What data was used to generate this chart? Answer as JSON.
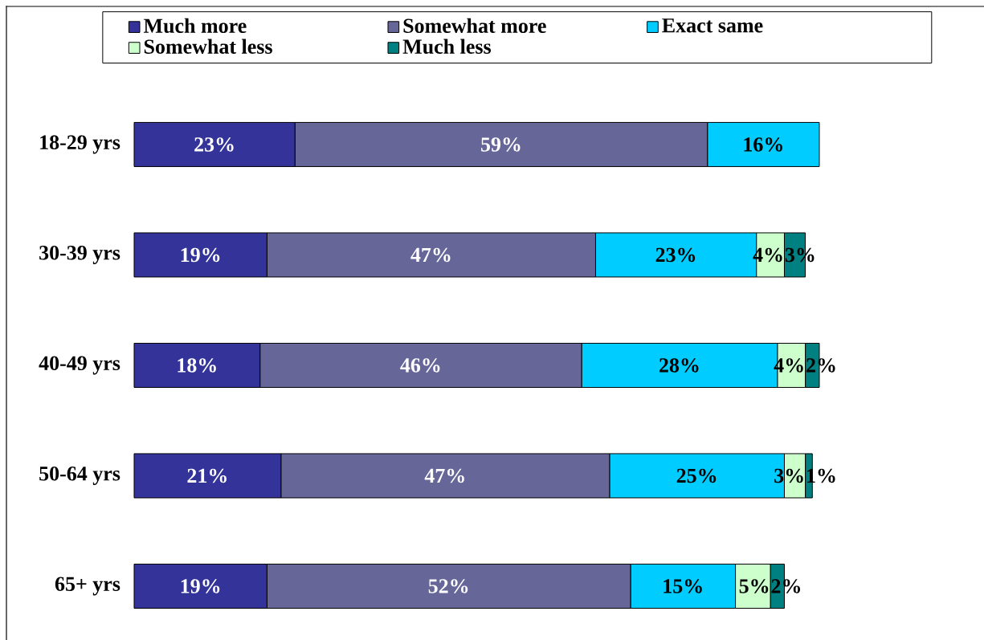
{
  "chart_data": {
    "type": "bar",
    "orientation": "horizontal",
    "stacked": true,
    "legend": "top",
    "categories": [
      "18-29 yrs",
      "30-39 yrs",
      "40-49 yrs",
      "50-64 yrs",
      "65+ yrs"
    ],
    "series": [
      {
        "name": "Much more",
        "color": "#333399",
        "values": [
          23,
          19,
          18,
          21,
          19
        ],
        "value_labels": [
          "23%",
          "19%",
          "18%",
          "21%",
          "19%"
        ]
      },
      {
        "name": "Somewhat more",
        "color": "#666699",
        "values": [
          59,
          47,
          46,
          47,
          52
        ],
        "value_labels": [
          "59%",
          "47%",
          "46%",
          "47%",
          "52%"
        ]
      },
      {
        "name": "Exact same",
        "color": "#00ccff",
        "values": [
          16,
          23,
          28,
          25,
          15
        ],
        "value_labels": [
          "16%",
          "23%",
          "28%",
          "25%",
          "15%"
        ]
      },
      {
        "name": "Somewhat less",
        "color": "#ccffcc",
        "values": [
          null,
          4,
          4,
          3,
          5
        ],
        "value_labels": [
          null,
          "4%",
          "4%",
          "3%",
          "5%"
        ]
      },
      {
        "name": "Much less",
        "color": "#008080",
        "values": [
          null,
          3,
          2,
          1,
          2
        ],
        "value_labels": [
          null,
          "3%",
          "2%",
          "1%",
          "2%"
        ]
      }
    ]
  }
}
